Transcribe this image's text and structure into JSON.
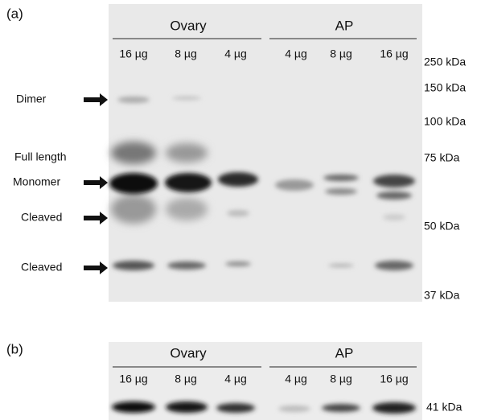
{
  "panel_a": {
    "label": "(a)",
    "groups": [
      "Ovary",
      "AP"
    ],
    "lanes": [
      "16 µg",
      "8 µg",
      "4 µg",
      "4 µg",
      "8 µg",
      "16 µg"
    ],
    "markers": [
      "250 kDa",
      "150 kDa",
      "100 kDa",
      "75 kDa",
      "50 kDa",
      "37 kDa"
    ],
    "annotations": [
      "Dimer",
      "Full length",
      "Monomer",
      "Cleaved",
      "Cleaved"
    ]
  },
  "panel_b": {
    "label": "(b)",
    "groups": [
      "Ovary",
      "AP"
    ],
    "lanes": [
      "16 µg",
      "8 µg",
      "4 µg",
      "4 µg",
      "8 µg",
      "16 µg"
    ],
    "marker": "41 kDa"
  }
}
